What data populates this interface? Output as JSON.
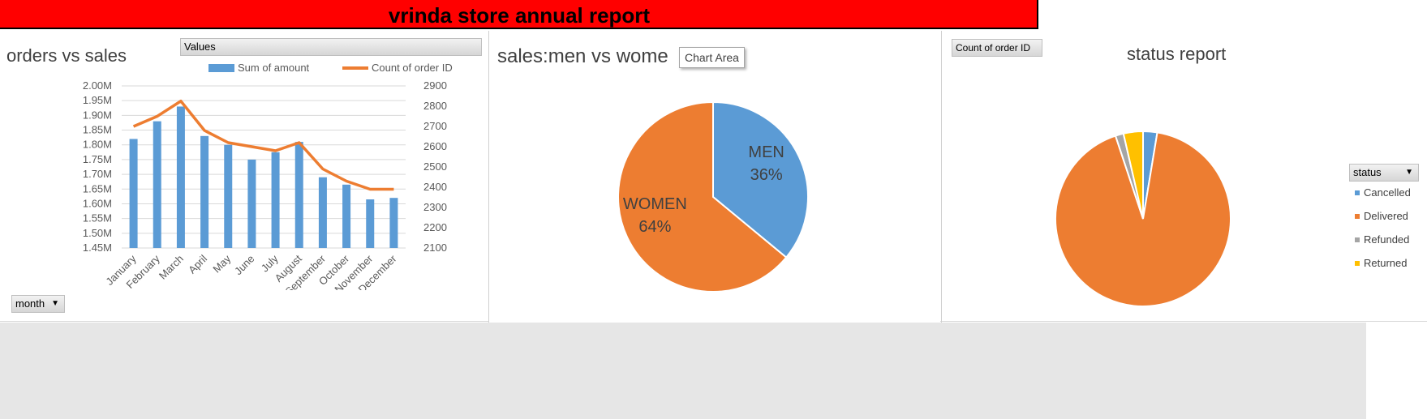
{
  "header": {
    "title": "vrinda store annual report"
  },
  "orders_chart": {
    "title": "orders vs sales",
    "values_button": "Values",
    "filter_button": "month",
    "chart_data": {
      "type": "bar+line",
      "title": "orders vs sales",
      "categories": [
        "January",
        "February",
        "March",
        "April",
        "May",
        "June",
        "July",
        "August",
        "September",
        "October",
        "November",
        "December"
      ],
      "series": [
        {
          "name": "Sum of amount",
          "type": "bar",
          "axis": "left",
          "color": "#5b9bd5",
          "values": [
            1.82,
            1.88,
            1.93,
            1.83,
            1.8,
            1.75,
            1.775,
            1.81,
            1.69,
            1.665,
            1.615,
            1.62
          ]
        },
        {
          "name": "Count of order ID",
          "type": "line",
          "axis": "right",
          "color": "#ed7d31",
          "values": [
            2700,
            2750,
            2825,
            2680,
            2620,
            2600,
            2580,
            2620,
            2490,
            2430,
            2390,
            2390
          ]
        }
      ],
      "left_axis": {
        "ylim": [
          1.45,
          2.0
        ],
        "ticks": [
          "1.45M",
          "1.50M",
          "1.55M",
          "1.60M",
          "1.65M",
          "1.70M",
          "1.75M",
          "1.80M",
          "1.85M",
          "1.90M",
          "1.95M",
          "2.00M"
        ]
      },
      "right_axis": {
        "ylim": [
          2100,
          2900
        ],
        "ticks": [
          "2100",
          "2200",
          "2300",
          "2400",
          "2500",
          "2600",
          "2700",
          "2800",
          "2900"
        ]
      },
      "legend_position": "top"
    }
  },
  "gender_chart": {
    "title": "sales:men vs wome",
    "tooltip": "Chart Area",
    "chart_data": {
      "type": "pie",
      "title": "sales:men vs wome",
      "slices": [
        {
          "label": "MEN",
          "value": 36,
          "pct_label": "36%",
          "color": "#5b9bd5"
        },
        {
          "label": "WOMEN",
          "value": 64,
          "pct_label": "64%",
          "color": "#ed7d31"
        }
      ]
    }
  },
  "status_chart": {
    "title": "status report",
    "count_button": "Count of order ID",
    "legend_button": "status",
    "chart_data": {
      "type": "pie",
      "title": "status report",
      "slices": [
        {
          "label": "Cancelled",
          "value": 2.6,
          "color": "#5b9bd5"
        },
        {
          "label": "Delivered",
          "value": 92.3,
          "color": "#ed7d31"
        },
        {
          "label": "Refunded",
          "value": 1.5,
          "color": "#a5a5a5"
        },
        {
          "label": "Returned",
          "value": 3.6,
          "color": "#ffc000"
        }
      ],
      "legend_position": "right"
    }
  }
}
